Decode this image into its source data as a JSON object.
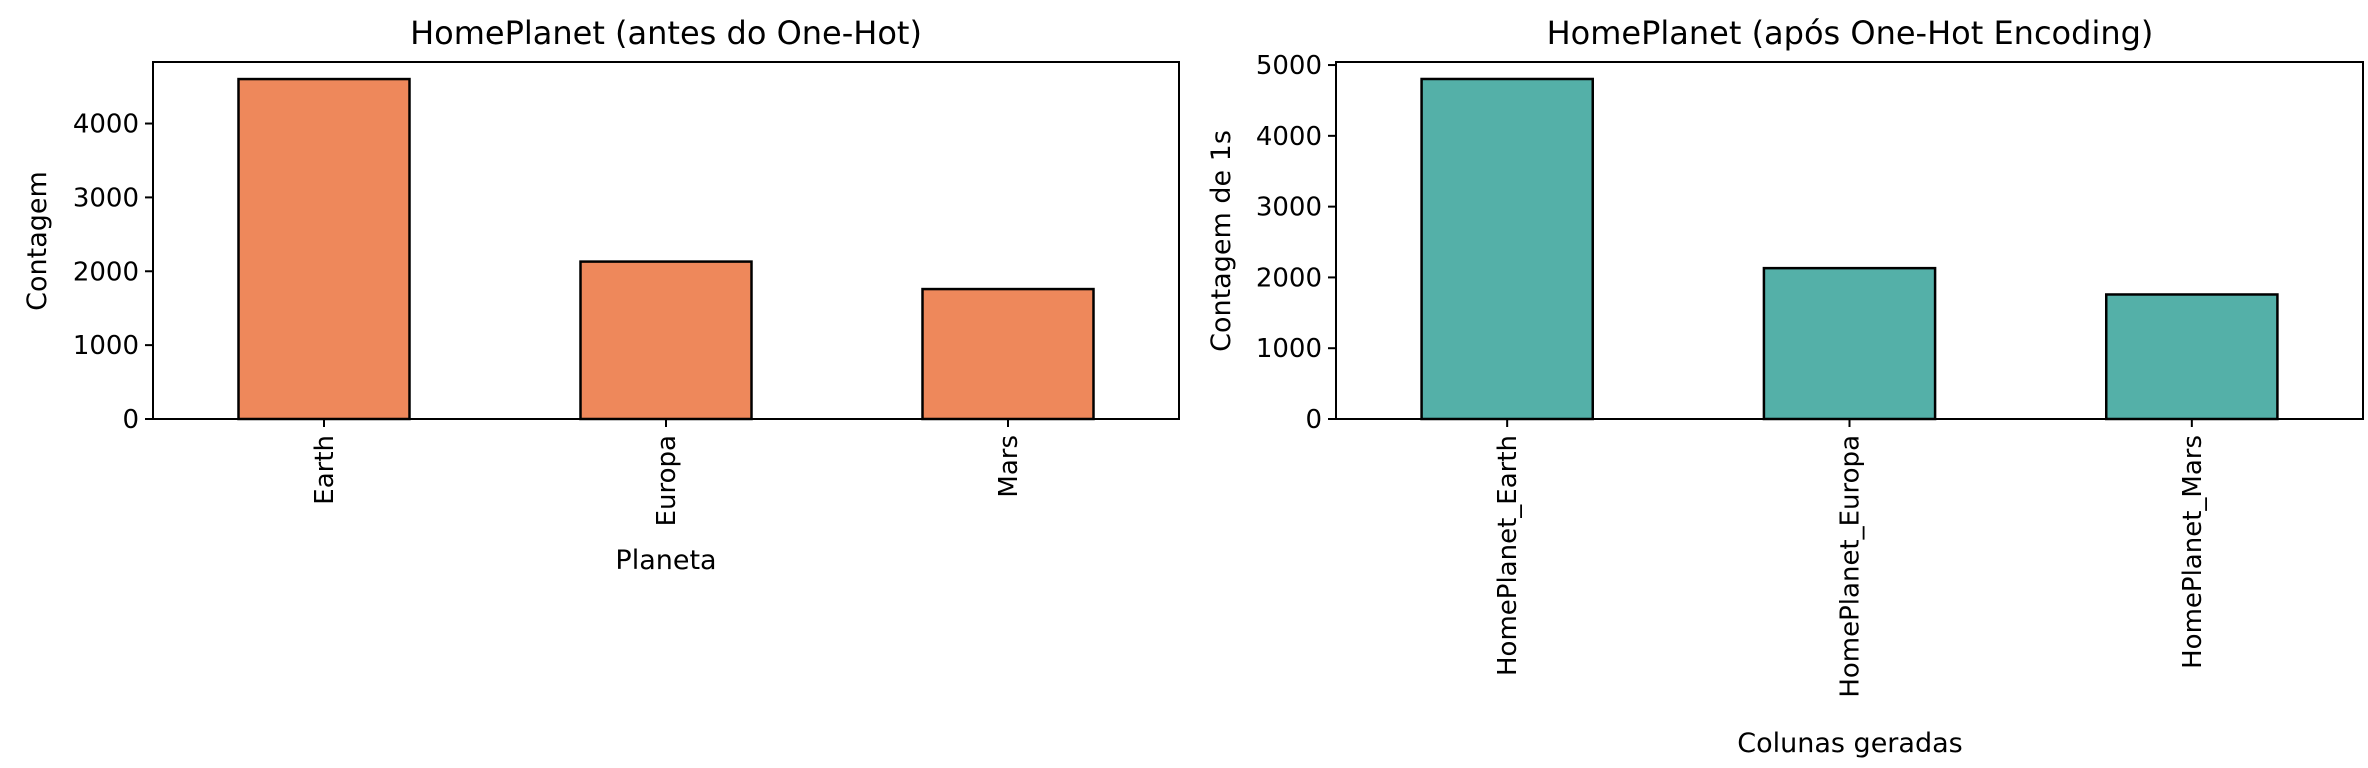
{
  "chart_data": [
    {
      "type": "bar",
      "title": "HomePlanet (antes do One-Hot)",
      "xlabel": "Planeta",
      "ylabel": "Contagem",
      "categories": [
        "Earth",
        "Europa",
        "Mars"
      ],
      "values": [
        4602,
        2131,
        1759
      ],
      "ylim": [
        0,
        4833
      ],
      "yticks": [
        0,
        1000,
        2000,
        3000,
        4000
      ],
      "bar_color": "#EE885B",
      "grid": false
    },
    {
      "type": "bar",
      "title": "HomePlanet (após One-Hot Encoding)",
      "xlabel": "Colunas geradas",
      "ylabel": "Contagem de 1s",
      "categories": [
        "HomePlanet_Earth",
        "HomePlanet_Europa",
        "HomePlanet_Mars"
      ],
      "values": [
        4803,
        2131,
        1759
      ],
      "ylim": [
        0,
        5043
      ],
      "yticks": [
        0,
        1000,
        2000,
        3000,
        4000,
        5000
      ],
      "bar_color": "#54B0A8",
      "grid": false
    }
  ]
}
